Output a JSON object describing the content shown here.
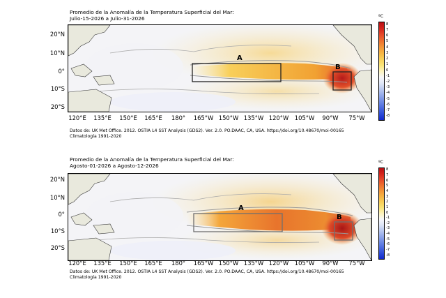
{
  "colors": {
    "land": "#e9e9dd",
    "coast": "#333333",
    "contour": "#999999",
    "box": "#222222",
    "box_second": "#6f6f6f",
    "neutral": "#f3f3f6"
  },
  "colorbar": {
    "unit": "ºC",
    "min": -8,
    "max": 8,
    "ticks": [
      "8",
      "7",
      "6",
      "5",
      "4",
      "3",
      "2",
      "1",
      "0",
      "-1",
      "-2",
      "-3",
      "-4",
      "-5",
      "-6",
      "-7",
      "-8"
    ]
  },
  "axes": {
    "y_ticks": [
      "20°N",
      "10°N",
      "0°",
      "10°S",
      "20°S"
    ],
    "x_ticks": [
      "120°E",
      "135°E",
      "150°E",
      "165°E",
      "180°",
      "165°W",
      "150°W",
      "135°W",
      "120°W",
      "105°W",
      "90°W",
      "75°W"
    ]
  },
  "panels": [
    {
      "title_line1": "Promedio de la Anomalía de la Temperatura Superficial del Mar:",
      "title_line2": "Julio-15-2026 a Julio-31-2026",
      "source_line1": "Datos de: UK Met Office. 2012. OSTIA L4 SST Analysis (GDS2). Ver. 2.0. PO.DAAC, CA, USA. https://doi.org/10.48670/moi-00165",
      "source_line2": "Climatología 1991-2020",
      "box_a_label": "A",
      "box_b_label": "B"
    },
    {
      "title_line1": "Promedio de la Anomalía de la Temperatura Superficial del Mar:",
      "title_line2": "Agosto-01-2026 a Agosto-12-2026",
      "source_line1": "Datos de: UK Met Office. 2012. OSTIA L4 SST Analysis (GDS2). Ver. 2.0. PO.DAAC, CA, USA. https://doi.org/10.48670/moi-00165",
      "source_line2": "Climatología 1991-2020",
      "box_a_label": "A",
      "box_b_label": "B"
    }
  ]
}
